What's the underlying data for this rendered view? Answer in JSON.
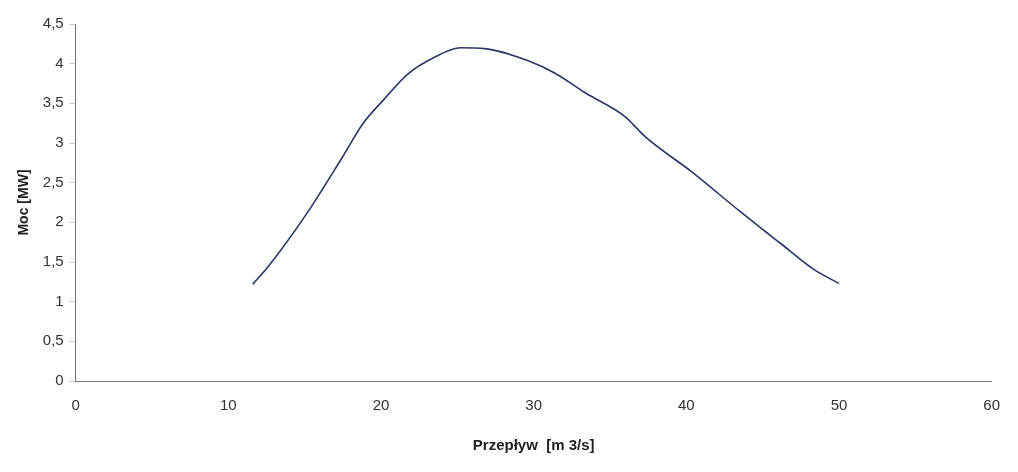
{
  "chart_data": {
    "type": "line",
    "xlabel": "Przepływ  [m 3/s]",
    "ylabel": "Moc [MW]",
    "xlim": [
      0,
      60
    ],
    "xticks": [
      0,
      10,
      20,
      30,
      40,
      50,
      60
    ],
    "ylim": [
      0,
      4.5
    ],
    "yticks": [
      0,
      {
        "value": 0.5,
        "label": "0,5"
      },
      1,
      {
        "value": 1.5,
        "label": "1,5"
      },
      2,
      {
        "value": 2.5,
        "label": "2,5"
      },
      3,
      {
        "value": 3.5,
        "label": "3,5"
      },
      4,
      {
        "value": 4.5,
        "label": "4,5"
      }
    ],
    "grid": false,
    "legend": false,
    "marker": "none",
    "line_style": "solid",
    "series": [
      {
        "color": "#2b3766",
        "x": [
          11.6,
          12.6,
          15.1,
          17.5,
          18.8,
          20.2,
          21.7,
          23.5,
          25.2,
          26.8,
          29.6,
          31.4,
          33.4,
          36.0,
          37.3,
          40.4,
          43.5,
          46.2,
          48.4,
          50.0
        ],
        "values": [
          1.22,
          1.44,
          2.1,
          2.83,
          3.24,
          3.55,
          3.86,
          4.08,
          4.2,
          4.19,
          4.04,
          3.88,
          3.63,
          3.33,
          3.08,
          2.63,
          2.14,
          1.73,
          1.4,
          1.23
        ]
      }
    ]
  }
}
